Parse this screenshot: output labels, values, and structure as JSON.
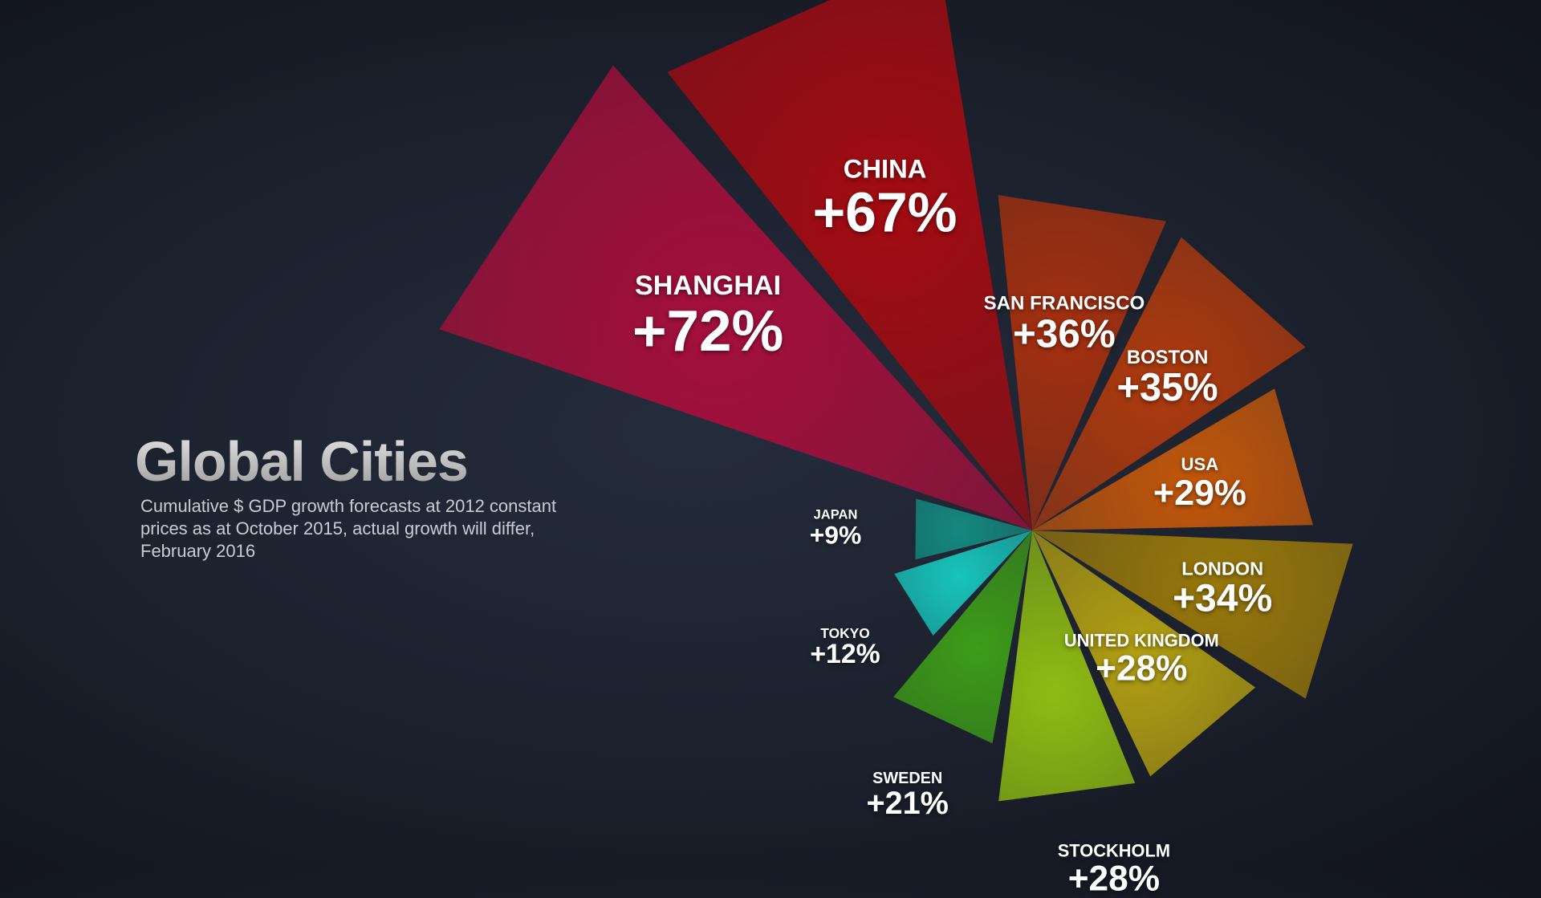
{
  "chart_data": {
    "type": "radial-triangle",
    "title": "Global Cities",
    "subtitle": "Cumulative $ GDP growth forecasts at 2012 constant prices as at October 2015, actual growth will differ, February 2016",
    "categories": [
      "SHANGHAI",
      "CHINA",
      "SAN FRANCISCO",
      "BOSTON",
      "USA",
      "LONDON",
      "UNITED KINGDOM",
      "STOCKHOLM",
      "SWEDEN",
      "TOKYO",
      "JAPAN"
    ],
    "values": [
      72,
      67,
      36,
      35,
      29,
      34,
      28,
      28,
      21,
      12,
      9
    ],
    "value_labels": [
      "+72%",
      "+67%",
      "+36%",
      "+35%",
      "+29%",
      "+34%",
      "+28%",
      "+28%",
      "+21%",
      "+12%",
      "+9%"
    ],
    "colors": [
      "#a50f3c",
      "#a30b12",
      "#a4300f",
      "#ae3a0e",
      "#c2570b",
      "#98780b",
      "#b3a012",
      "#8fbc12",
      "#3d9c18",
      "#17c4bb",
      "#14897f"
    ]
  }
}
